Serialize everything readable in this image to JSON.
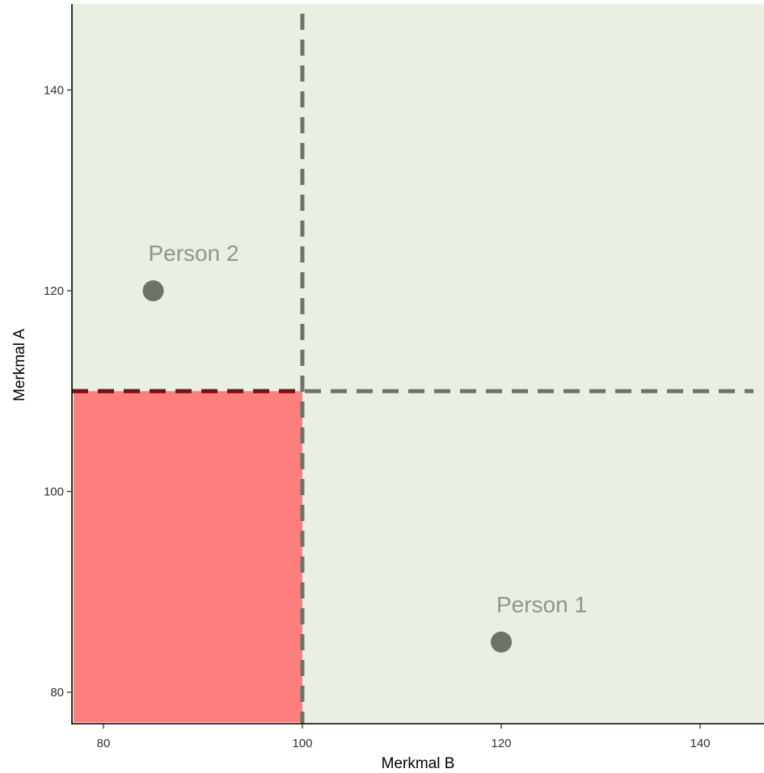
{
  "chart_data": {
    "type": "scatter",
    "title": "",
    "xlabel": "Merkmal B",
    "ylabel": "Merkmal A",
    "xlim": [
      77,
      147
    ],
    "ylim": [
      77,
      148
    ],
    "x_ticks": [
      80,
      100,
      120,
      140
    ],
    "y_ticks": [
      80,
      100,
      120,
      140
    ],
    "grid": false,
    "points": [
      {
        "label": "Person 1",
        "x": 120,
        "y": 85
      },
      {
        "label": "Person 2",
        "x": 85,
        "y": 120
      }
    ],
    "cutoffs": {
      "x": 100,
      "y": 110
    },
    "shaded_region": {
      "x": [
        77,
        100
      ],
      "y": [
        77,
        110
      ]
    },
    "colors": {
      "panel_background": "#e7f0e3",
      "shaded_region": "#fe7e7e",
      "points": "#6b7466",
      "point_labels": "#8f968b",
      "cutoff_lines": "#6b7466",
      "cutoff_line_over_region": "#7a1010"
    }
  }
}
